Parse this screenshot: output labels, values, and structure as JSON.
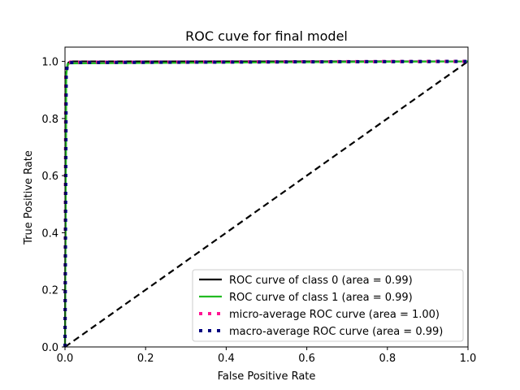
{
  "chart_data": {
    "type": "line",
    "title": "ROC cuve for final model",
    "xlabel": "False Positive Rate",
    "ylabel": "True Positive Rate",
    "xlim": [
      0.0,
      1.0
    ],
    "ylim": [
      0.0,
      1.05
    ],
    "xticks": [
      0.0,
      0.2,
      0.4,
      0.6,
      0.8,
      1.0
    ],
    "xtick_labels": [
      "0.0",
      "0.2",
      "0.4",
      "0.6",
      "0.8",
      "1.0"
    ],
    "yticks": [
      0.0,
      0.2,
      0.4,
      0.6,
      0.8,
      1.0
    ],
    "ytick_labels": [
      "0.0",
      "0.2",
      "0.4",
      "0.6",
      "0.8",
      "1.0"
    ],
    "grid": false,
    "legend_position": "lower-right",
    "series": [
      {
        "name": "ROC curve of class 0 (area = 0.99)",
        "color": "#000000",
        "style": "solid",
        "x": [
          0.0,
          0.003,
          0.008,
          0.013,
          1.0
        ],
        "y": [
          0.0,
          0.96,
          0.995,
          1.0,
          1.0
        ]
      },
      {
        "name": "ROC curve of class 1 (area = 0.99)",
        "color": "#22bb22",
        "style": "solid",
        "x": [
          0.0,
          0.003,
          0.006,
          0.012,
          1.0
        ],
        "y": [
          0.0,
          0.95,
          0.99,
          0.993,
          1.0
        ]
      },
      {
        "name": "micro-average ROC curve (area = 1.00)",
        "color": "#ff1493",
        "style": "dotted",
        "x": [
          0.0,
          0.002,
          0.004,
          0.01,
          1.0
        ],
        "y": [
          0.0,
          0.96,
          0.99,
          0.997,
          1.0
        ]
      },
      {
        "name": "macro-average ROC curve (area = 0.99)",
        "color": "#000080",
        "style": "dotted",
        "x": [
          0.0,
          0.003,
          0.006,
          0.012,
          1.0
        ],
        "y": [
          0.0,
          0.95,
          0.99,
          0.996,
          1.0
        ]
      }
    ],
    "reference_line": {
      "color": "#000000",
      "style": "dashed",
      "x": [
        0.0,
        1.0
      ],
      "y": [
        0.0,
        1.0
      ]
    }
  }
}
